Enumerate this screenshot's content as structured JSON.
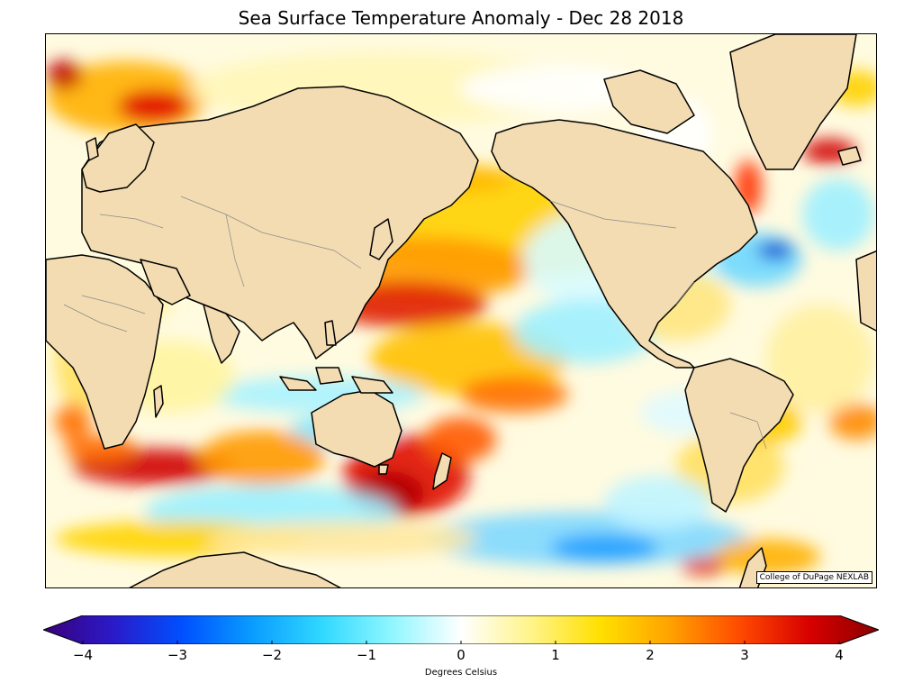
{
  "title": "Sea Surface Temperature Anomaly - Dec 28 2018",
  "credit": "College of DuPage NEXLAB",
  "colorbar": {
    "label": "Degrees Celsius",
    "min": -4,
    "max": 4,
    "ticks": [
      {
        "value": -4,
        "label": "−4"
      },
      {
        "value": -3,
        "label": "−3"
      },
      {
        "value": -2,
        "label": "−2"
      },
      {
        "value": -1,
        "label": "−1"
      },
      {
        "value": 0,
        "label": "0"
      },
      {
        "value": 1,
        "label": "1"
      },
      {
        "value": 2,
        "label": "2"
      },
      {
        "value": 3,
        "label": "3"
      },
      {
        "value": 4,
        "label": "4"
      }
    ],
    "colors": [
      "#3a007a",
      "#2a1ac8",
      "#0050ff",
      "#0a9cff",
      "#30d8ff",
      "#8ff6ff",
      "#ffffff",
      "#fff48a",
      "#ffe000",
      "#ffa200",
      "#ff4a00",
      "#d80000",
      "#8a0000"
    ]
  },
  "map": {
    "land_color": "#f3dcb1",
    "coast_color": "#000000",
    "border_color": "#8a8a8a"
  }
}
